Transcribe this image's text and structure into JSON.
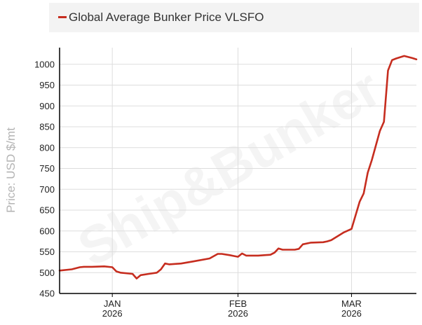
{
  "colors": {
    "series": "#c62d1f",
    "grid": "#dddddd",
    "axis": "#000000",
    "legend_bg": "#f3f3f3",
    "ylabel": "#b4b4b4"
  },
  "chart_data": {
    "type": "line",
    "title": "Global Average Bunker Price VLSFO",
    "xlabel": "",
    "ylabel": "Price: USD $/mt",
    "ylim": [
      450,
      1040
    ],
    "yticks": [
      450,
      500,
      550,
      600,
      650,
      700,
      750,
      800,
      850,
      900,
      950,
      1000
    ],
    "xlim": [
      -13,
      75
    ],
    "xticks": [
      {
        "day": 0,
        "line1": "JAN",
        "line2": "2026"
      },
      {
        "day": 31,
        "line1": "FEB",
        "line2": "2026"
      },
      {
        "day": 59,
        "line1": "MAR",
        "line2": "2026"
      }
    ],
    "grid": true,
    "legend": "top",
    "watermark": "Ship&Bunker",
    "series": [
      {
        "name": "Global Average Bunker Price VLSFO",
        "x": [
          -13,
          -10,
          -8,
          -7,
          -5,
          -2,
          0,
          1,
          2,
          5,
          6,
          7,
          9,
          11,
          12,
          13,
          14,
          17,
          20,
          24,
          26,
          27,
          29,
          30,
          31,
          32,
          33,
          36,
          39,
          40,
          41,
          42,
          45,
          46,
          47,
          49,
          52,
          53,
          54,
          57,
          59,
          61,
          62,
          63,
          64,
          66,
          67,
          68,
          69,
          70,
          72,
          74,
          75
        ],
        "values": [
          505,
          508,
          513,
          514,
          514,
          515,
          513,
          503,
          500,
          497,
          486,
          494,
          497,
          500,
          508,
          522,
          520,
          522,
          527,
          534,
          545,
          545,
          542,
          540,
          538,
          546,
          541,
          541,
          543,
          548,
          558,
          555,
          555,
          557,
          568,
          572,
          573,
          575,
          578,
          596,
          605,
          670,
          690,
          740,
          770,
          840,
          862,
          985,
          1010,
          1014,
          1020,
          1015,
          1012
        ]
      }
    ]
  }
}
